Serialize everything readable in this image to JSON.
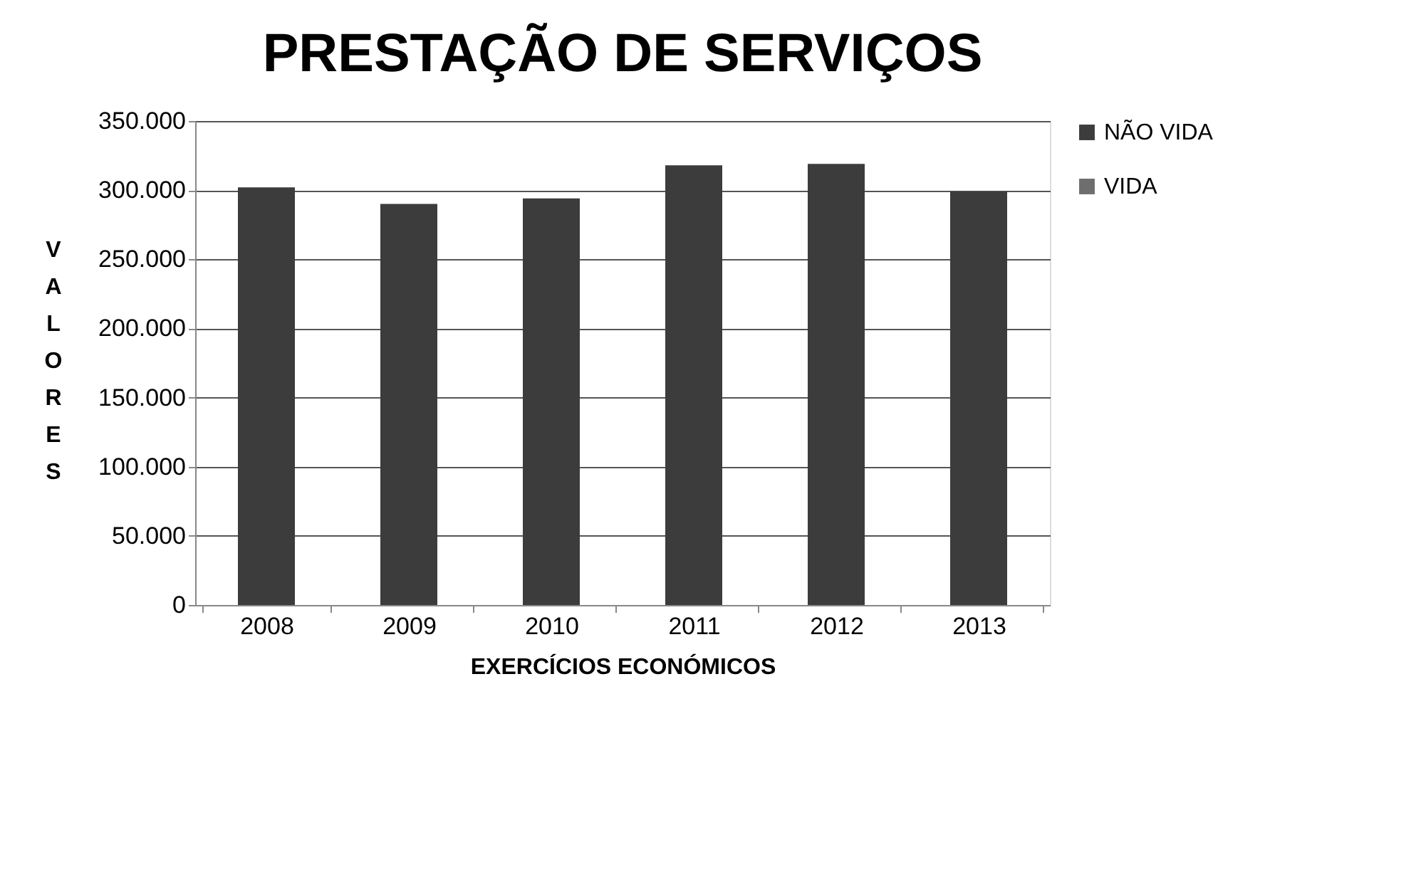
{
  "chart_data": {
    "type": "bar",
    "title": "PRESTAÇÃO DE SERVIÇOS",
    "xlabel": "EXERCÍCIOS ECONÓMICOS",
    "ylabel": "VALORES",
    "categories": [
      "2008",
      "2009",
      "2010",
      "2011",
      "2012",
      "2013"
    ],
    "series": [
      {
        "name": "NÃO VIDA",
        "color": "#3c3c3c",
        "values": [
          302000,
          290000,
          294000,
          318000,
          319000,
          299000
        ]
      },
      {
        "name": "VIDA",
        "color": "#6e6e6e",
        "values": [
          null,
          null,
          null,
          null,
          null,
          null
        ]
      }
    ],
    "ylim": [
      0,
      350000
    ],
    "yticks": [
      {
        "value": 0,
        "label": "0"
      },
      {
        "value": 50000,
        "label": "50.000"
      },
      {
        "value": 100000,
        "label": "100.000"
      },
      {
        "value": 150000,
        "label": "150.000"
      },
      {
        "value": 200000,
        "label": "200.000"
      },
      {
        "value": 250000,
        "label": "250.000"
      },
      {
        "value": 300000,
        "label": "300.000"
      },
      {
        "value": 350000,
        "label": "350.000"
      }
    ],
    "grid": "y",
    "legend": "right"
  }
}
